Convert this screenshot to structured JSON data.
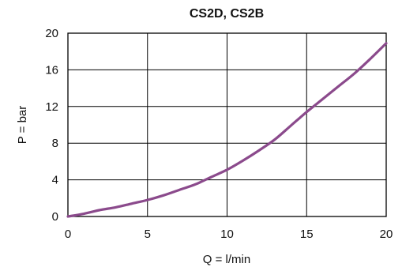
{
  "chart_data": {
    "type": "line",
    "title": "CS2D, CS2B",
    "xlabel": "Q = l/min",
    "ylabel": "P = bar",
    "xlim": [
      0,
      20
    ],
    "ylim": [
      0,
      20
    ],
    "xticks": [
      0,
      5,
      10,
      15,
      20
    ],
    "yticks": [
      0,
      4,
      8,
      12,
      16,
      20
    ],
    "grid": true,
    "series": [
      {
        "color": "#8b4a8c",
        "x": [
          0,
          1,
          2,
          3,
          4,
          5,
          6,
          7,
          8,
          9,
          10,
          11,
          12,
          13,
          14,
          15,
          16,
          17,
          18,
          19,
          20
        ],
        "y": [
          0,
          0.3,
          0.7,
          1.0,
          1.4,
          1.8,
          2.3,
          2.9,
          3.5,
          4.3,
          5.1,
          6.1,
          7.2,
          8.4,
          9.9,
          11.4,
          12.8,
          14.2,
          15.6,
          17.2,
          18.9
        ]
      }
    ]
  }
}
